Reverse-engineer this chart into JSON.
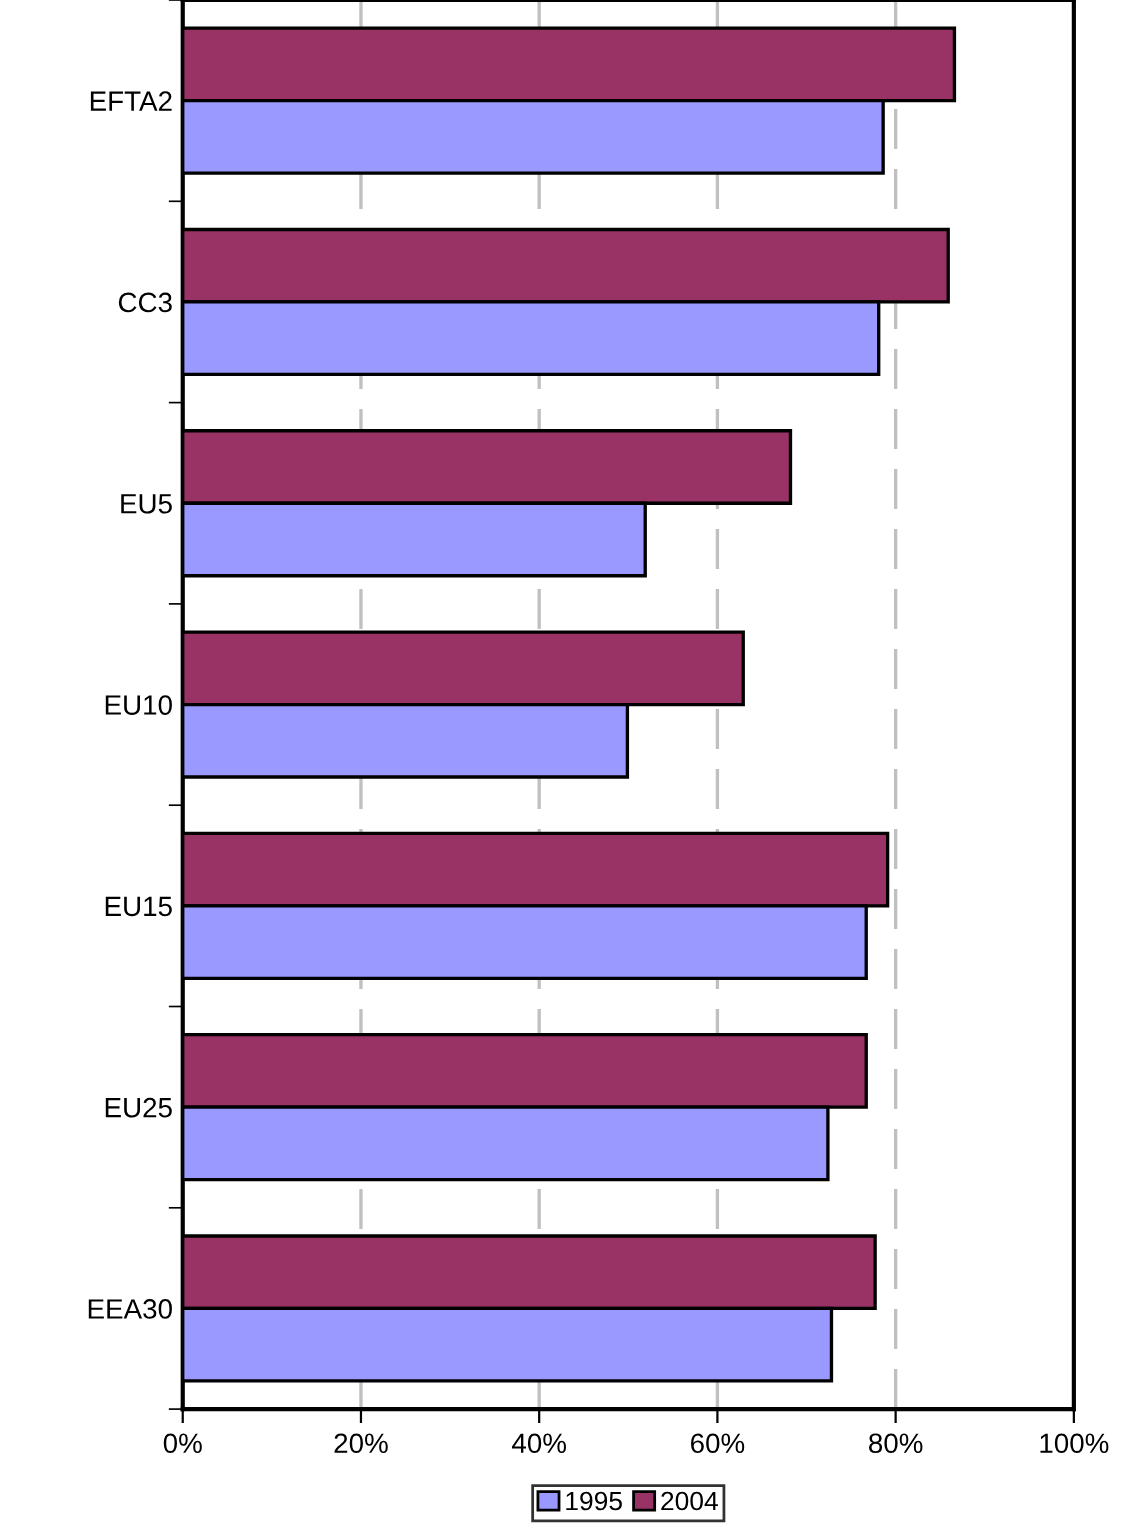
{
  "chart_data": {
    "type": "bar",
    "orientation": "horizontal",
    "categories": [
      "EFTA2",
      "CC3",
      "EU5",
      "EU10",
      "EU15",
      "EU25",
      "EEA30"
    ],
    "series": [
      {
        "name": "2004",
        "color": "#993366",
        "values": [
          86.6,
          85.9,
          68.2,
          62.9,
          79.1,
          76.7,
          77.7
        ]
      },
      {
        "name": "1995",
        "color": "#9999ff",
        "values": [
          78.6,
          78.1,
          51.9,
          49.9,
          76.7,
          72.4,
          72.8
        ]
      }
    ],
    "xlim": [
      0,
      100
    ],
    "xticks": [
      {
        "value": 0,
        "label": "0%"
      },
      {
        "value": 20,
        "label": "20%"
      },
      {
        "value": 40,
        "label": "40%"
      },
      {
        "value": 60,
        "label": "60%"
      },
      {
        "value": 80,
        "label": "80%"
      },
      {
        "value": 100,
        "label": "100%"
      }
    ],
    "grid": "x",
    "legend": "bottom"
  }
}
